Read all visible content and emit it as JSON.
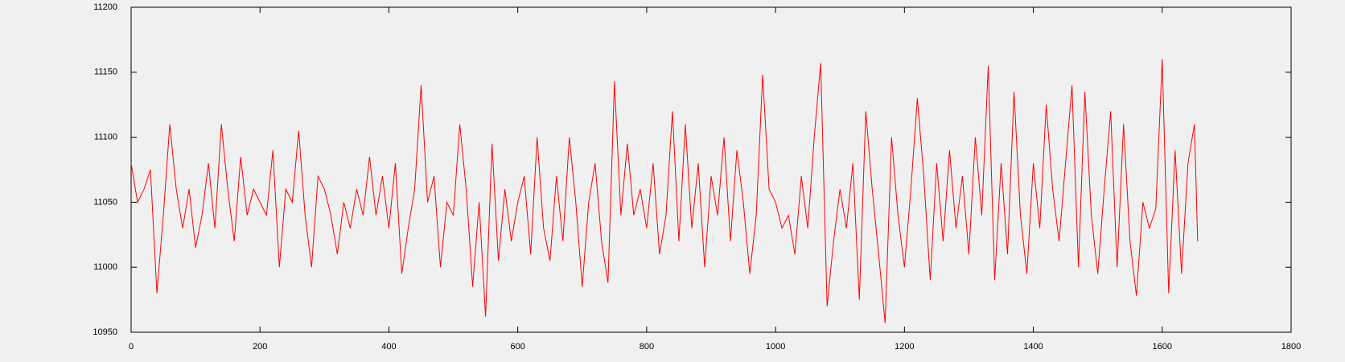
{
  "chart_data": {
    "type": "line",
    "x": [
      0,
      10,
      20,
      30,
      40,
      50,
      60,
      70,
      80,
      90,
      100,
      110,
      120,
      130,
      140,
      150,
      160,
      170,
      180,
      190,
      200,
      210,
      220,
      230,
      240,
      250,
      260,
      270,
      280,
      290,
      300,
      310,
      320,
      330,
      340,
      350,
      360,
      370,
      380,
      390,
      400,
      410,
      420,
      430,
      440,
      450,
      460,
      470,
      480,
      490,
      500,
      510,
      520,
      530,
      540,
      550,
      560,
      570,
      580,
      590,
      600,
      610,
      620,
      630,
      640,
      650,
      660,
      670,
      680,
      690,
      700,
      710,
      720,
      730,
      740,
      750,
      760,
      770,
      780,
      790,
      800,
      810,
      820,
      830,
      840,
      850,
      860,
      870,
      880,
      890,
      900,
      910,
      920,
      930,
      940,
      950,
      960,
      970,
      980,
      990,
      1000,
      1010,
      1020,
      1030,
      1040,
      1050,
      1060,
      1070,
      1080,
      1090,
      1100,
      1110,
      1120,
      1130,
      1140,
      1150,
      1160,
      1170,
      1180,
      1190,
      1200,
      1210,
      1220,
      1230,
      1240,
      1250,
      1260,
      1270,
      1280,
      1290,
      1300,
      1310,
      1320,
      1330,
      1340,
      1350,
      1360,
      1370,
      1380,
      1390,
      1400,
      1410,
      1420,
      1430,
      1440,
      1450,
      1460,
      1470,
      1480,
      1490,
      1500,
      1510,
      1520,
      1530,
      1540,
      1550,
      1560,
      1570,
      1580,
      1590,
      1600,
      1610,
      1620,
      1630,
      1640,
      1650,
      1655
    ],
    "series": [
      {
        "color": "#ff0000",
        "values": [
          11080,
          11050,
          11060,
          11075,
          10980,
          11040,
          11110,
          11060,
          11030,
          11060,
          11015,
          11040,
          11080,
          11030,
          11110,
          11060,
          11020,
          11085,
          11040,
          11060,
          11050,
          11040,
          11090,
          11000,
          11060,
          11050,
          11105,
          11040,
          11000,
          11070,
          11060,
          11040,
          11010,
          11050,
          11030,
          11060,
          11040,
          11085,
          11040,
          11070,
          11030,
          11080,
          10995,
          11030,
          11060,
          11140,
          11050,
          11070,
          11000,
          11050,
          11040,
          11110,
          11060,
          10985,
          11050,
          10962,
          11095,
          11005,
          11060,
          11020,
          11050,
          11070,
          11010,
          11100,
          11030,
          11005,
          11070,
          11020,
          11100,
          11050,
          10985,
          11050,
          11080,
          11020,
          10988,
          11143,
          11040,
          11095,
          11040,
          11060,
          11030,
          11080,
          11010,
          11040,
          11120,
          11020,
          11110,
          11030,
          11080,
          11000,
          11070,
          11040,
          11100,
          11020,
          11090,
          11050,
          10995,
          11040,
          11148,
          11060,
          11050,
          11030,
          11040,
          11010,
          11070,
          11030,
          11100,
          11157,
          10970,
          11020,
          11060,
          11030,
          11080,
          10975,
          11120,
          11060,
          11010,
          10957,
          11100,
          11040,
          11000,
          11060,
          11130,
          11070,
          10990,
          11080,
          11020,
          11090,
          11030,
          11070,
          11010,
          11100,
          11040,
          11155,
          10990,
          11080,
          11010,
          11135,
          11040,
          10995,
          11080,
          11030,
          11125,
          11060,
          11020,
          11080,
          11140,
          11000,
          11135,
          11040,
          10995,
          11060,
          11120,
          11000,
          11110,
          11020,
          10978,
          11050,
          11030,
          11045,
          11160,
          10980,
          11090,
          10995,
          11080,
          11110,
          11020
        ]
      }
    ],
    "xlim": [
      0,
      1800
    ],
    "xticks": [
      0,
      200,
      400,
      600,
      800,
      1000,
      1200,
      1400,
      1600,
      1800
    ],
    "ylim": [
      10950,
      11200
    ],
    "yticks": [
      10950,
      11000,
      11050,
      11100,
      11150,
      11200
    ],
    "grid": false
  }
}
